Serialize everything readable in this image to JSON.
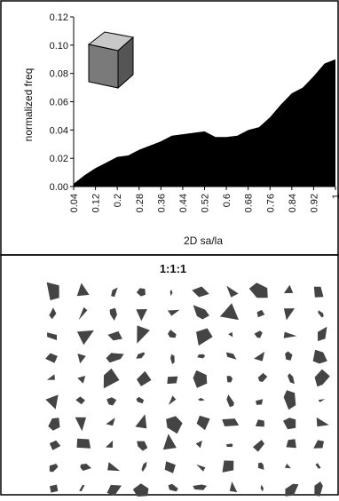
{
  "chart_data": [
    {
      "type": "area",
      "title": "",
      "xlabel": "2D sa/la",
      "ylabel": "normalized freq",
      "xlim": [
        0.04,
        1.0
      ],
      "ylim": [
        0.0,
        0.12
      ],
      "x_ticks": [
        "0.04",
        "0.12",
        "0.2",
        "0.28",
        "0.36",
        "0.44",
        "0.52",
        "0.6",
        "0.68",
        "0.76",
        "0.84",
        "0.92",
        "1"
      ],
      "y_ticks": [
        "0.00",
        "0.02",
        "0.04",
        "0.06",
        "0.08",
        "0.10",
        "0.12"
      ],
      "grid": false,
      "inset_icon": "cube-icon",
      "colors": {
        "fill": "#000000",
        "cube_top": "#c8c8c8",
        "cube_front": "#7a7a7a",
        "cube_side": "#555555"
      },
      "series": [
        {
          "x": [
            0.04,
            0.08,
            0.12,
            0.16,
            0.2,
            0.24,
            0.28,
            0.32,
            0.36,
            0.4,
            0.44,
            0.48,
            0.52,
            0.56,
            0.6,
            0.64,
            0.68,
            0.72,
            0.76,
            0.8,
            0.84,
            0.88,
            0.92,
            0.96,
            1.0
          ],
          "values": [
            0.002,
            0.008,
            0.013,
            0.017,
            0.021,
            0.022,
            0.026,
            0.029,
            0.032,
            0.036,
            0.037,
            0.038,
            0.039,
            0.035,
            0.035,
            0.036,
            0.04,
            0.042,
            0.049,
            0.058,
            0.066,
            0.07,
            0.078,
            0.087,
            0.09
          ]
        }
      ]
    },
    {
      "type": "other",
      "title": "1:1:1",
      "description_shapes_color": "#444444",
      "grid_rows": 10,
      "grid_cols": 10
    }
  ]
}
